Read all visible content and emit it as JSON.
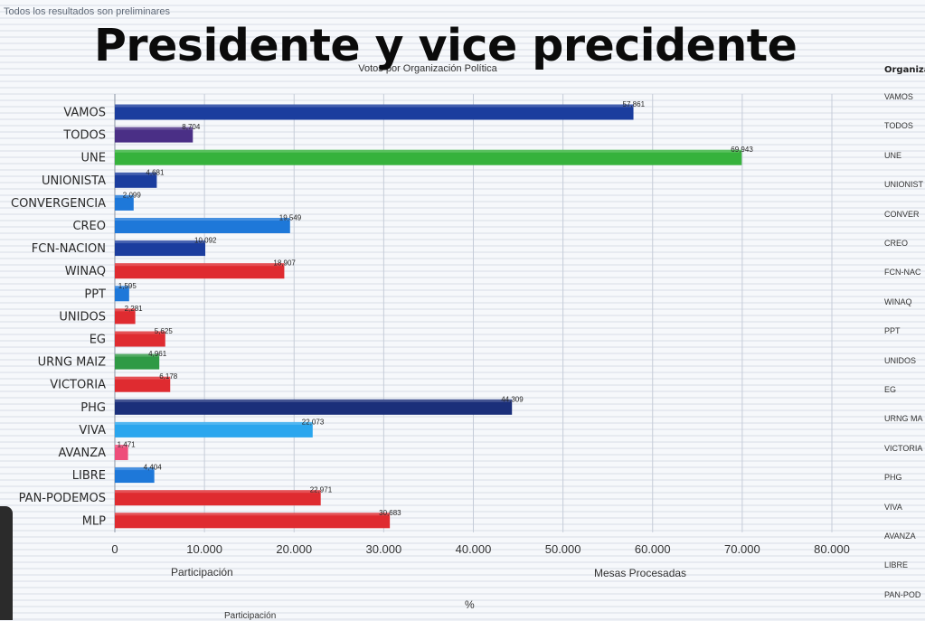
{
  "header": {
    "preliminary_note": "Todos los resultados son preliminares",
    "overlay_title": "Presidente  y vice precidente"
  },
  "chart_data": {
    "type": "bar",
    "orientation": "horizontal",
    "title": "Votos por Organización Política",
    "categories": [
      "VAMOS",
      "TODOS",
      "UNE",
      "UNIONISTA",
      "CONVERGENCIA",
      "CREO",
      "FCN-NACION",
      "WINAQ",
      "PPT",
      "UNIDOS",
      "EG",
      "URNG MAIZ",
      "VICTORIA",
      "PHG",
      "VIVA",
      "AVANZA",
      "LIBRE",
      "PAN-PODEMOS",
      "MLP"
    ],
    "values": [
      57861,
      8704,
      69943,
      4681,
      2099,
      19549,
      10092,
      18907,
      1595,
      2281,
      5625,
      4961,
      6178,
      44309,
      22073,
      1471,
      4404,
      22971,
      30683
    ],
    "data_labels": [
      "57,861",
      "8,704",
      "69,943",
      "4,681",
      "2,099",
      "19,549",
      "10,092",
      "18,907",
      "1,595",
      "2,281",
      "5,625",
      "4,961",
      "6,178",
      "44,309",
      "22,073",
      "1,471",
      "4,404",
      "22,971",
      "30,683"
    ],
    "colors": [
      "#1b3d9e",
      "#4a2f86",
      "#36b23c",
      "#1b3d9e",
      "#1e78d9",
      "#1e78d9",
      "#1b3d9e",
      "#df2b30",
      "#1e78d9",
      "#df2b30",
      "#df2b30",
      "#2f9a45",
      "#df2b30",
      "#1b2f7a",
      "#2aa6ee",
      "#ee4d7a",
      "#1e78d9",
      "#df2b30",
      "#df2b30"
    ],
    "xlim": [
      0,
      80000
    ],
    "x_ticks": [
      "0",
      "10.000",
      "20.000",
      "30.000",
      "40.000",
      "50.000",
      "60.000",
      "70.000",
      "80.000"
    ],
    "grid": true
  },
  "bottom": {
    "participacion": "Participación",
    "mesas": "Mesas Procesadas",
    "percent": "%",
    "participacion_lower": "Participación"
  },
  "side_panel": {
    "header": "Organiza",
    "items": [
      "VAMOS",
      "TODOS",
      "UNE",
      "UNIONIST",
      "CONVER",
      "CREO",
      "FCN-NAC",
      "WINAQ",
      "PPT",
      "UNIDOS",
      "EG",
      "URNG MA",
      "VICTORIA",
      "PHG",
      "VIVA",
      "AVANZA",
      "LIBRE",
      "PAN-POD"
    ]
  }
}
